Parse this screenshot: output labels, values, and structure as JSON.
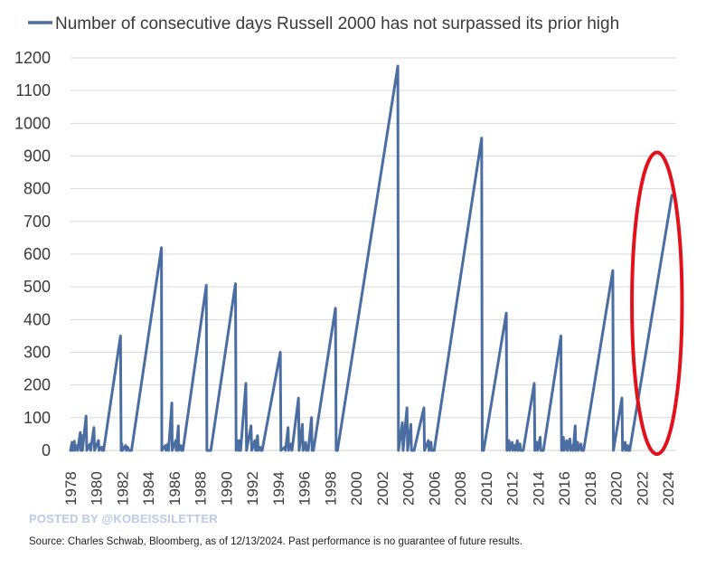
{
  "colors": {
    "series": "#4a6ea1",
    "highlight": "#e0121b",
    "grid": "#d9d9d9"
  },
  "footer": {
    "watermark": "POSTED BY @KOBEISSILETTER",
    "source": "Source: Charles Schwab, Bloomberg, as of 12/13/2024.  Past performance is no guarantee of future results."
  },
  "chart_data": {
    "type": "line",
    "grid": "horizontal",
    "legend_position": "top",
    "xlim": [
      1978,
      2024.8
    ],
    "ylim": [
      0,
      1200
    ],
    "x_ticks": [
      1978,
      1980,
      1982,
      1984,
      1986,
      1988,
      1990,
      1992,
      1994,
      1996,
      1998,
      2000,
      2002,
      2004,
      2006,
      2008,
      2010,
      2012,
      2014,
      2016,
      2018,
      2020,
      2022,
      2024
    ],
    "x_tick_labels": [
      "1978",
      "1980",
      "1982",
      "1984",
      "1986",
      "1988",
      "1990",
      "1992",
      "1994",
      "1996",
      "1998",
      "2000",
      "2002",
      "2004",
      "2006",
      "2008",
      "2010",
      "2012",
      "2014",
      "2016",
      "2018",
      "2020",
      "2022",
      "2024"
    ],
    "y_ticks": [
      0,
      100,
      200,
      300,
      400,
      500,
      600,
      700,
      800,
      900,
      1000,
      1100,
      1200
    ],
    "y_tick_labels": [
      "0",
      "100",
      "200",
      "300",
      "400",
      "500",
      "600",
      "700",
      "800",
      "900",
      "1000",
      "1100",
      "1200"
    ],
    "annotations": [
      {
        "type": "ellipse",
        "label": "",
        "x_range": [
          2021.5,
          2024.8
        ],
        "y_range": [
          0,
          900
        ]
      }
    ],
    "series": [
      {
        "name": "Number of consecutive days Russell 2000 has not surpassed its prior high",
        "points": [
          [
            1978.0,
            0
          ],
          [
            1978.12,
            25
          ],
          [
            1978.15,
            0
          ],
          [
            1978.3,
            28
          ],
          [
            1978.33,
            0
          ],
          [
            1978.5,
            15
          ],
          [
            1978.55,
            0
          ],
          [
            1978.75,
            55
          ],
          [
            1978.8,
            0
          ],
          [
            1978.88,
            45
          ],
          [
            1978.92,
            0
          ],
          [
            1979.2,
            105
          ],
          [
            1979.25,
            0
          ],
          [
            1979.5,
            20
          ],
          [
            1979.55,
            0
          ],
          [
            1979.8,
            70
          ],
          [
            1979.85,
            0
          ],
          [
            1980.15,
            30
          ],
          [
            1980.2,
            0
          ],
          [
            1980.4,
            10
          ],
          [
            1980.45,
            0
          ],
          [
            1980.55,
            0
          ],
          [
            1981.85,
            350
          ],
          [
            1981.9,
            0
          ],
          [
            1981.95,
            20
          ],
          [
            1982.0,
            0
          ],
          [
            1982.25,
            15
          ],
          [
            1982.3,
            0
          ],
          [
            1982.4,
            10
          ],
          [
            1982.5,
            0
          ],
          [
            1982.7,
            0
          ],
          [
            1985.0,
            620
          ],
          [
            1985.03,
            0
          ],
          [
            1985.3,
            15
          ],
          [
            1985.35,
            0
          ],
          [
            1985.5,
            20
          ],
          [
            1985.55,
            0
          ],
          [
            1985.8,
            145
          ],
          [
            1985.83,
            0
          ],
          [
            1986.1,
            30
          ],
          [
            1986.15,
            0
          ],
          [
            1986.3,
            75
          ],
          [
            1986.33,
            0
          ],
          [
            1986.5,
            15
          ],
          [
            1986.55,
            0
          ],
          [
            1986.65,
            0
          ],
          [
            1988.45,
            505
          ],
          [
            1988.5,
            0
          ],
          [
            1988.7,
            0
          ],
          [
            1988.8,
            0
          ],
          [
            1990.7,
            510
          ],
          [
            1990.75,
            0
          ],
          [
            1990.9,
            30
          ],
          [
            1990.95,
            0
          ],
          [
            1991.05,
            30
          ],
          [
            1991.1,
            0
          ],
          [
            1991.5,
            205
          ],
          [
            1991.55,
            0
          ],
          [
            1991.9,
            75
          ],
          [
            1991.95,
            0
          ],
          [
            1992.2,
            30
          ],
          [
            1992.25,
            0
          ],
          [
            1992.4,
            45
          ],
          [
            1992.45,
            0
          ],
          [
            1992.6,
            10
          ],
          [
            1992.65,
            0
          ],
          [
            1992.75,
            0
          ],
          [
            1994.15,
            300
          ],
          [
            1994.2,
            0
          ],
          [
            1994.5,
            10
          ],
          [
            1994.55,
            0
          ],
          [
            1994.75,
            70
          ],
          [
            1994.8,
            0
          ],
          [
            1995.0,
            20
          ],
          [
            1995.05,
            0
          ],
          [
            1995.55,
            160
          ],
          [
            1995.6,
            0
          ],
          [
            1995.85,
            80
          ],
          [
            1995.9,
            0
          ],
          [
            1996.1,
            25
          ],
          [
            1996.15,
            0
          ],
          [
            1996.25,
            15
          ],
          [
            1996.3,
            0
          ],
          [
            1996.55,
            100
          ],
          [
            1996.6,
            0
          ],
          [
            1996.7,
            0
          ],
          [
            1998.4,
            435
          ],
          [
            1998.45,
            0
          ],
          [
            1998.55,
            0
          ],
          [
            2003.2,
            1175
          ],
          [
            2003.25,
            0
          ],
          [
            2003.55,
            85
          ],
          [
            2003.6,
            0
          ],
          [
            2003.9,
            130
          ],
          [
            2003.95,
            0
          ],
          [
            2004.2,
            80
          ],
          [
            2004.25,
            0
          ],
          [
            2004.45,
            0
          ],
          [
            2005.2,
            130
          ],
          [
            2005.25,
            0
          ],
          [
            2005.55,
            30
          ],
          [
            2005.6,
            0
          ],
          [
            2005.75,
            25
          ],
          [
            2005.8,
            0
          ],
          [
            2006.0,
            0
          ],
          [
            2009.65,
            955
          ],
          [
            2009.7,
            0
          ],
          [
            2009.8,
            0
          ],
          [
            2011.55,
            420
          ],
          [
            2011.6,
            0
          ],
          [
            2011.75,
            30
          ],
          [
            2011.8,
            0
          ],
          [
            2012.0,
            25
          ],
          [
            2012.05,
            0
          ],
          [
            2012.2,
            15
          ],
          [
            2012.25,
            0
          ],
          [
            2012.4,
            30
          ],
          [
            2012.45,
            0
          ],
          [
            2012.6,
            20
          ],
          [
            2012.65,
            0
          ],
          [
            2012.85,
            0
          ],
          [
            2013.7,
            205
          ],
          [
            2013.75,
            0
          ],
          [
            2013.9,
            25
          ],
          [
            2013.95,
            0
          ],
          [
            2014.15,
            40
          ],
          [
            2014.2,
            0
          ],
          [
            2014.4,
            0
          ],
          [
            2015.75,
            350
          ],
          [
            2015.8,
            0
          ],
          [
            2015.95,
            40
          ],
          [
            2016.0,
            0
          ],
          [
            2016.2,
            30
          ],
          [
            2016.25,
            0
          ],
          [
            2016.45,
            35
          ],
          [
            2016.5,
            0
          ],
          [
            2016.65,
            15
          ],
          [
            2016.7,
            0
          ],
          [
            2016.85,
            75
          ],
          [
            2016.9,
            0
          ],
          [
            2017.05,
            25
          ],
          [
            2017.1,
            0
          ],
          [
            2017.3,
            20
          ],
          [
            2017.35,
            0
          ],
          [
            2017.5,
            0
          ],
          [
            2019.75,
            550
          ],
          [
            2019.8,
            0
          ],
          [
            2020.45,
            160
          ],
          [
            2020.5,
            0
          ],
          [
            2020.7,
            25
          ],
          [
            2020.75,
            0
          ],
          [
            2020.9,
            15
          ],
          [
            2020.95,
            0
          ],
          [
            2021.05,
            0
          ],
          [
            2024.3,
            780
          ]
        ]
      }
    ]
  }
}
